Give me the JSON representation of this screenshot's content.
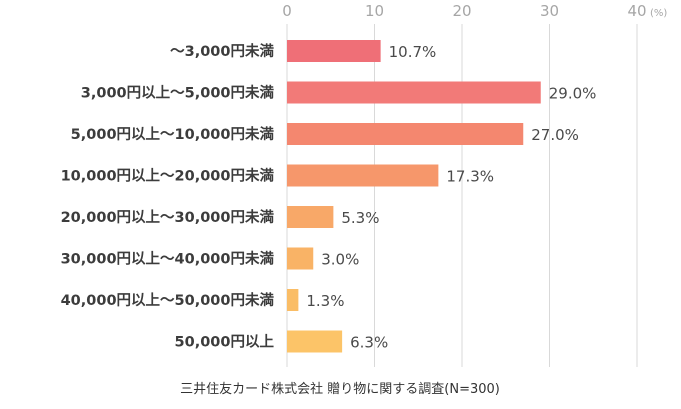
{
  "chart_data": {
    "type": "bar",
    "orientation": "horizontal",
    "categories": [
      "〜3,000円未満",
      "3,000円以上〜5,000円未満",
      "5,000円以上〜10,000円未満",
      "10,000円以上〜20,000円未満",
      "20,000円以上〜30,000円未満",
      "30,000円以上〜40,000円未満",
      "40,000円以上〜50,000円未満",
      "50,000円以上"
    ],
    "values": [
      10.7,
      29.0,
      27.0,
      17.3,
      5.3,
      3.0,
      1.3,
      6.3
    ],
    "value_labels": [
      "10.7%",
      "29.0%",
      "27.0%",
      "17.3%",
      "5.3%",
      "3.0%",
      "1.3%",
      "6.3%"
    ],
    "bar_colors": [
      "#ef6f77",
      "#f27a78",
      "#f4876f",
      "#f6976b",
      "#f8a868",
      "#f9b366",
      "#fabd66",
      "#fcc468"
    ],
    "xlim": [
      0,
      40
    ],
    "xticks": [
      0,
      10,
      20,
      30,
      40
    ],
    "xtick_labels": [
      "0",
      "10",
      "20",
      "30",
      "40"
    ],
    "unit": "(%)",
    "axis_position": "top",
    "grid": true,
    "source": "三井住友カード株式会社 贈り物に関する調査(N=300)"
  }
}
